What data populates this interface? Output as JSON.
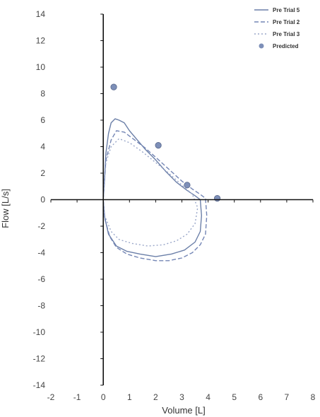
{
  "chart_data": {
    "type": "line",
    "xlabel": "Volume [L]",
    "ylabel": "Flow [L/s]",
    "xlim": [
      -2,
      8
    ],
    "ylim": [
      -14,
      14
    ],
    "x_ticks": [
      "-2",
      "-1",
      "0",
      "1",
      "2",
      "3",
      "4",
      "5",
      "6",
      "7",
      "8"
    ],
    "y_ticks": [
      "14",
      "12",
      "10",
      "8",
      "6",
      "4",
      "2",
      "0",
      "-2",
      "-4",
      "-6",
      "-8",
      "-10",
      "-12",
      "-14"
    ],
    "legend_position": "top-right",
    "grid": false,
    "series": [
      {
        "name": "Pre Trial 5",
        "color": "#6b7fa8",
        "dash": "solid",
        "x": [
          0.0,
          0.1,
          0.2,
          0.3,
          0.45,
          0.6,
          0.8,
          1.0,
          1.3,
          1.6,
          2.0,
          2.4,
          2.8,
          3.2,
          3.5,
          3.7,
          3.75,
          3.7,
          3.5,
          3.1,
          2.6,
          2.0,
          1.4,
          0.9,
          0.5,
          0.2,
          0.05,
          0.0
        ],
        "y": [
          0.0,
          3.5,
          5.0,
          5.8,
          6.1,
          6.0,
          5.8,
          5.2,
          4.5,
          3.8,
          3.0,
          2.1,
          1.3,
          0.7,
          0.3,
          0.0,
          -1.2,
          -2.4,
          -3.2,
          -3.8,
          -4.1,
          -4.3,
          -4.1,
          -3.9,
          -3.5,
          -2.6,
          -1.3,
          0.0
        ]
      },
      {
        "name": "Pre Trial 2",
        "color": "#7486b5",
        "dash": "dashed",
        "x": [
          0.0,
          0.1,
          0.3,
          0.5,
          0.8,
          1.2,
          1.6,
          2.0,
          2.5,
          3.0,
          3.4,
          3.7,
          3.9,
          3.95,
          3.9,
          3.7,
          3.4,
          3.0,
          2.5,
          2.0,
          1.4,
          0.9,
          0.5,
          0.25,
          0.05,
          0.0
        ],
        "y": [
          0.0,
          3.0,
          4.5,
          5.2,
          5.1,
          4.5,
          3.9,
          3.2,
          2.3,
          1.4,
          0.8,
          0.4,
          0.1,
          -1.2,
          -2.6,
          -3.4,
          -4.0,
          -4.4,
          -4.6,
          -4.6,
          -4.4,
          -4.1,
          -3.6,
          -2.8,
          -1.4,
          0.0
        ]
      },
      {
        "name": "Pre Trial 3",
        "color": "#9aa7c9",
        "dash": "dotted",
        "x": [
          0.0,
          0.1,
          0.3,
          0.6,
          1.0,
          1.5,
          2.0,
          2.5,
          3.0,
          3.4,
          3.6,
          3.5,
          3.2,
          2.8,
          2.3,
          1.7,
          1.1,
          0.6,
          0.3,
          0.05,
          0.0
        ],
        "y": [
          0.0,
          2.8,
          4.0,
          4.6,
          4.3,
          3.6,
          2.8,
          2.0,
          1.1,
          0.4,
          -0.6,
          -1.8,
          -2.6,
          -3.1,
          -3.4,
          -3.5,
          -3.3,
          -3.0,
          -2.4,
          -1.2,
          0.0
        ]
      }
    ],
    "predicted": {
      "name": "Predicted",
      "color": "#7d8fb8",
      "x": [
        0.4,
        2.1,
        3.2,
        4.35
      ],
      "y": [
        8.5,
        4.1,
        1.1,
        0.1
      ]
    }
  }
}
